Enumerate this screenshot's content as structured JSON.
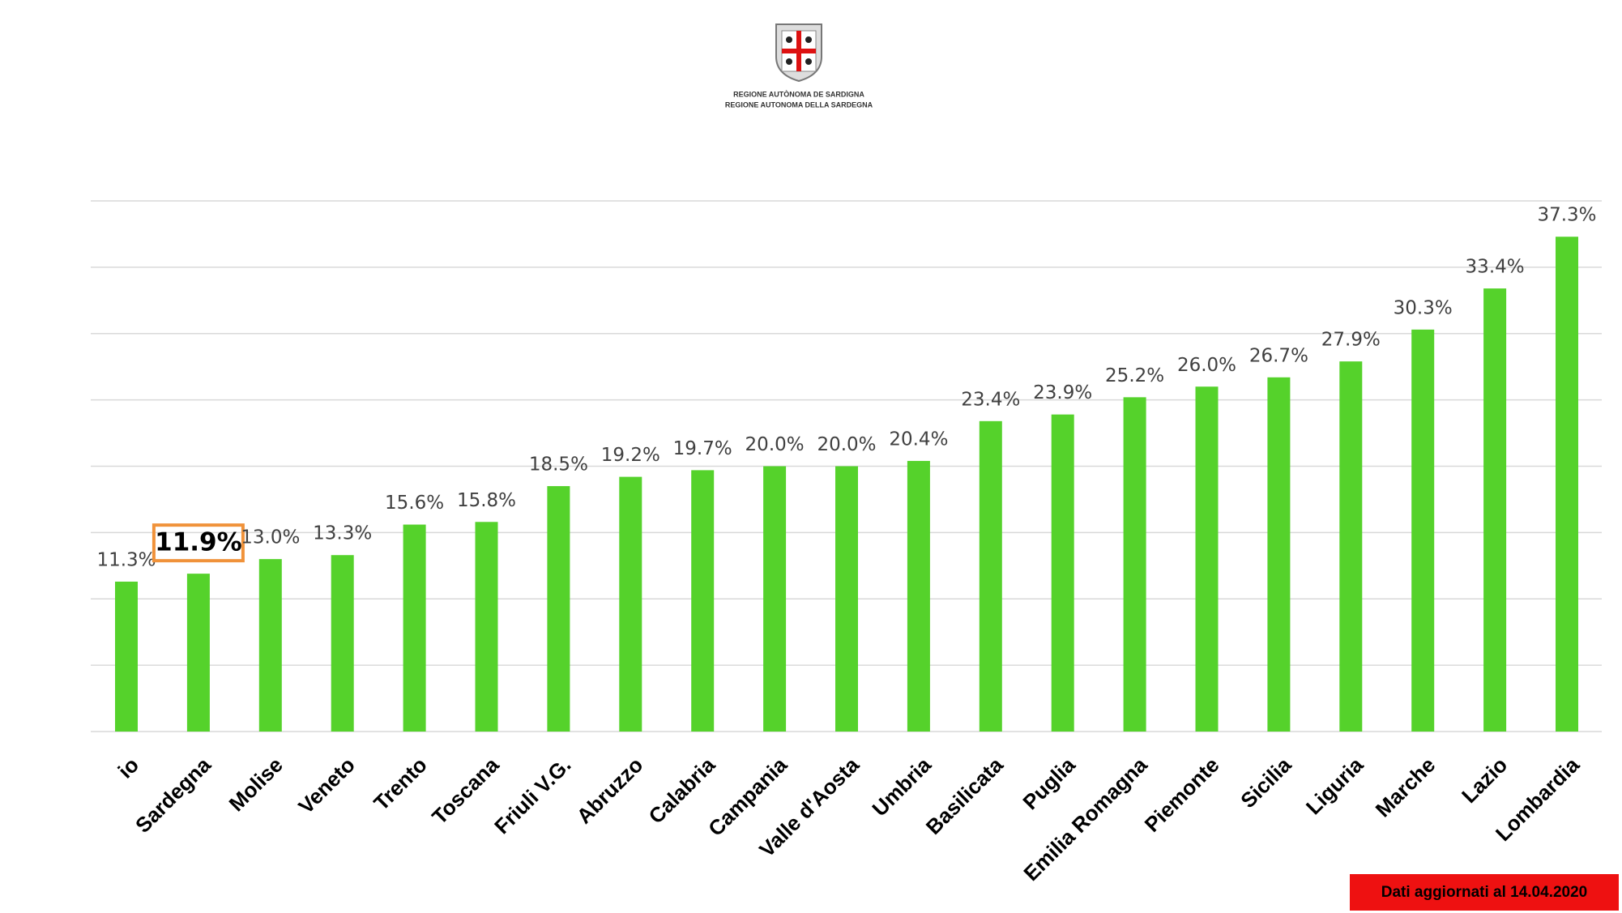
{
  "header": {
    "line1": "REGIONE AUTÒNOMA DE SARDIGNA",
    "line2": "REGIONE AUTONOMA DELLA SARDEGNA"
  },
  "chart_data": {
    "type": "bar",
    "categories": [
      "io",
      "Sardegna",
      "Molise",
      "Veneto",
      "Trento",
      "Toscana",
      "Friuli V.G.",
      "Abruzzo",
      "Calabria",
      "Campania",
      "Valle d'Aosta",
      "Umbria",
      "Basilicata",
      "Puglia",
      "Emilia Romagna",
      "Piemonte",
      "Sicilia",
      "Liguria",
      "Marche",
      "Lazio",
      "Lombardia"
    ],
    "values": [
      11.3,
      11.9,
      13.0,
      13.3,
      15.6,
      15.8,
      18.5,
      19.2,
      19.7,
      20.0,
      20.0,
      20.4,
      23.4,
      23.9,
      25.2,
      26.0,
      26.7,
      27.9,
      30.3,
      33.4,
      37.3
    ],
    "value_labels": [
      "11.3%",
      "11.9%",
      "13.0%",
      "13.3%",
      "15.6%",
      "15.8%",
      "18.5%",
      "19.2%",
      "19.7%",
      "20.0%",
      "20.0%",
      "20.4%",
      "23.4%",
      "23.9%",
      "25.2%",
      "26.0%",
      "26.7%",
      "27.9%",
      "30.3%",
      "33.4%",
      "37.3%"
    ],
    "color": "#55d22b",
    "highlight": "Sardegna",
    "highlight_color": "#f0923a",
    "ylim": [
      0,
      40
    ],
    "yticks": [
      0,
      5,
      10,
      15,
      20,
      25,
      30,
      35,
      40
    ],
    "grid": true
  },
  "footer": {
    "note": "Dati aggiornati al 14.04.2020"
  }
}
